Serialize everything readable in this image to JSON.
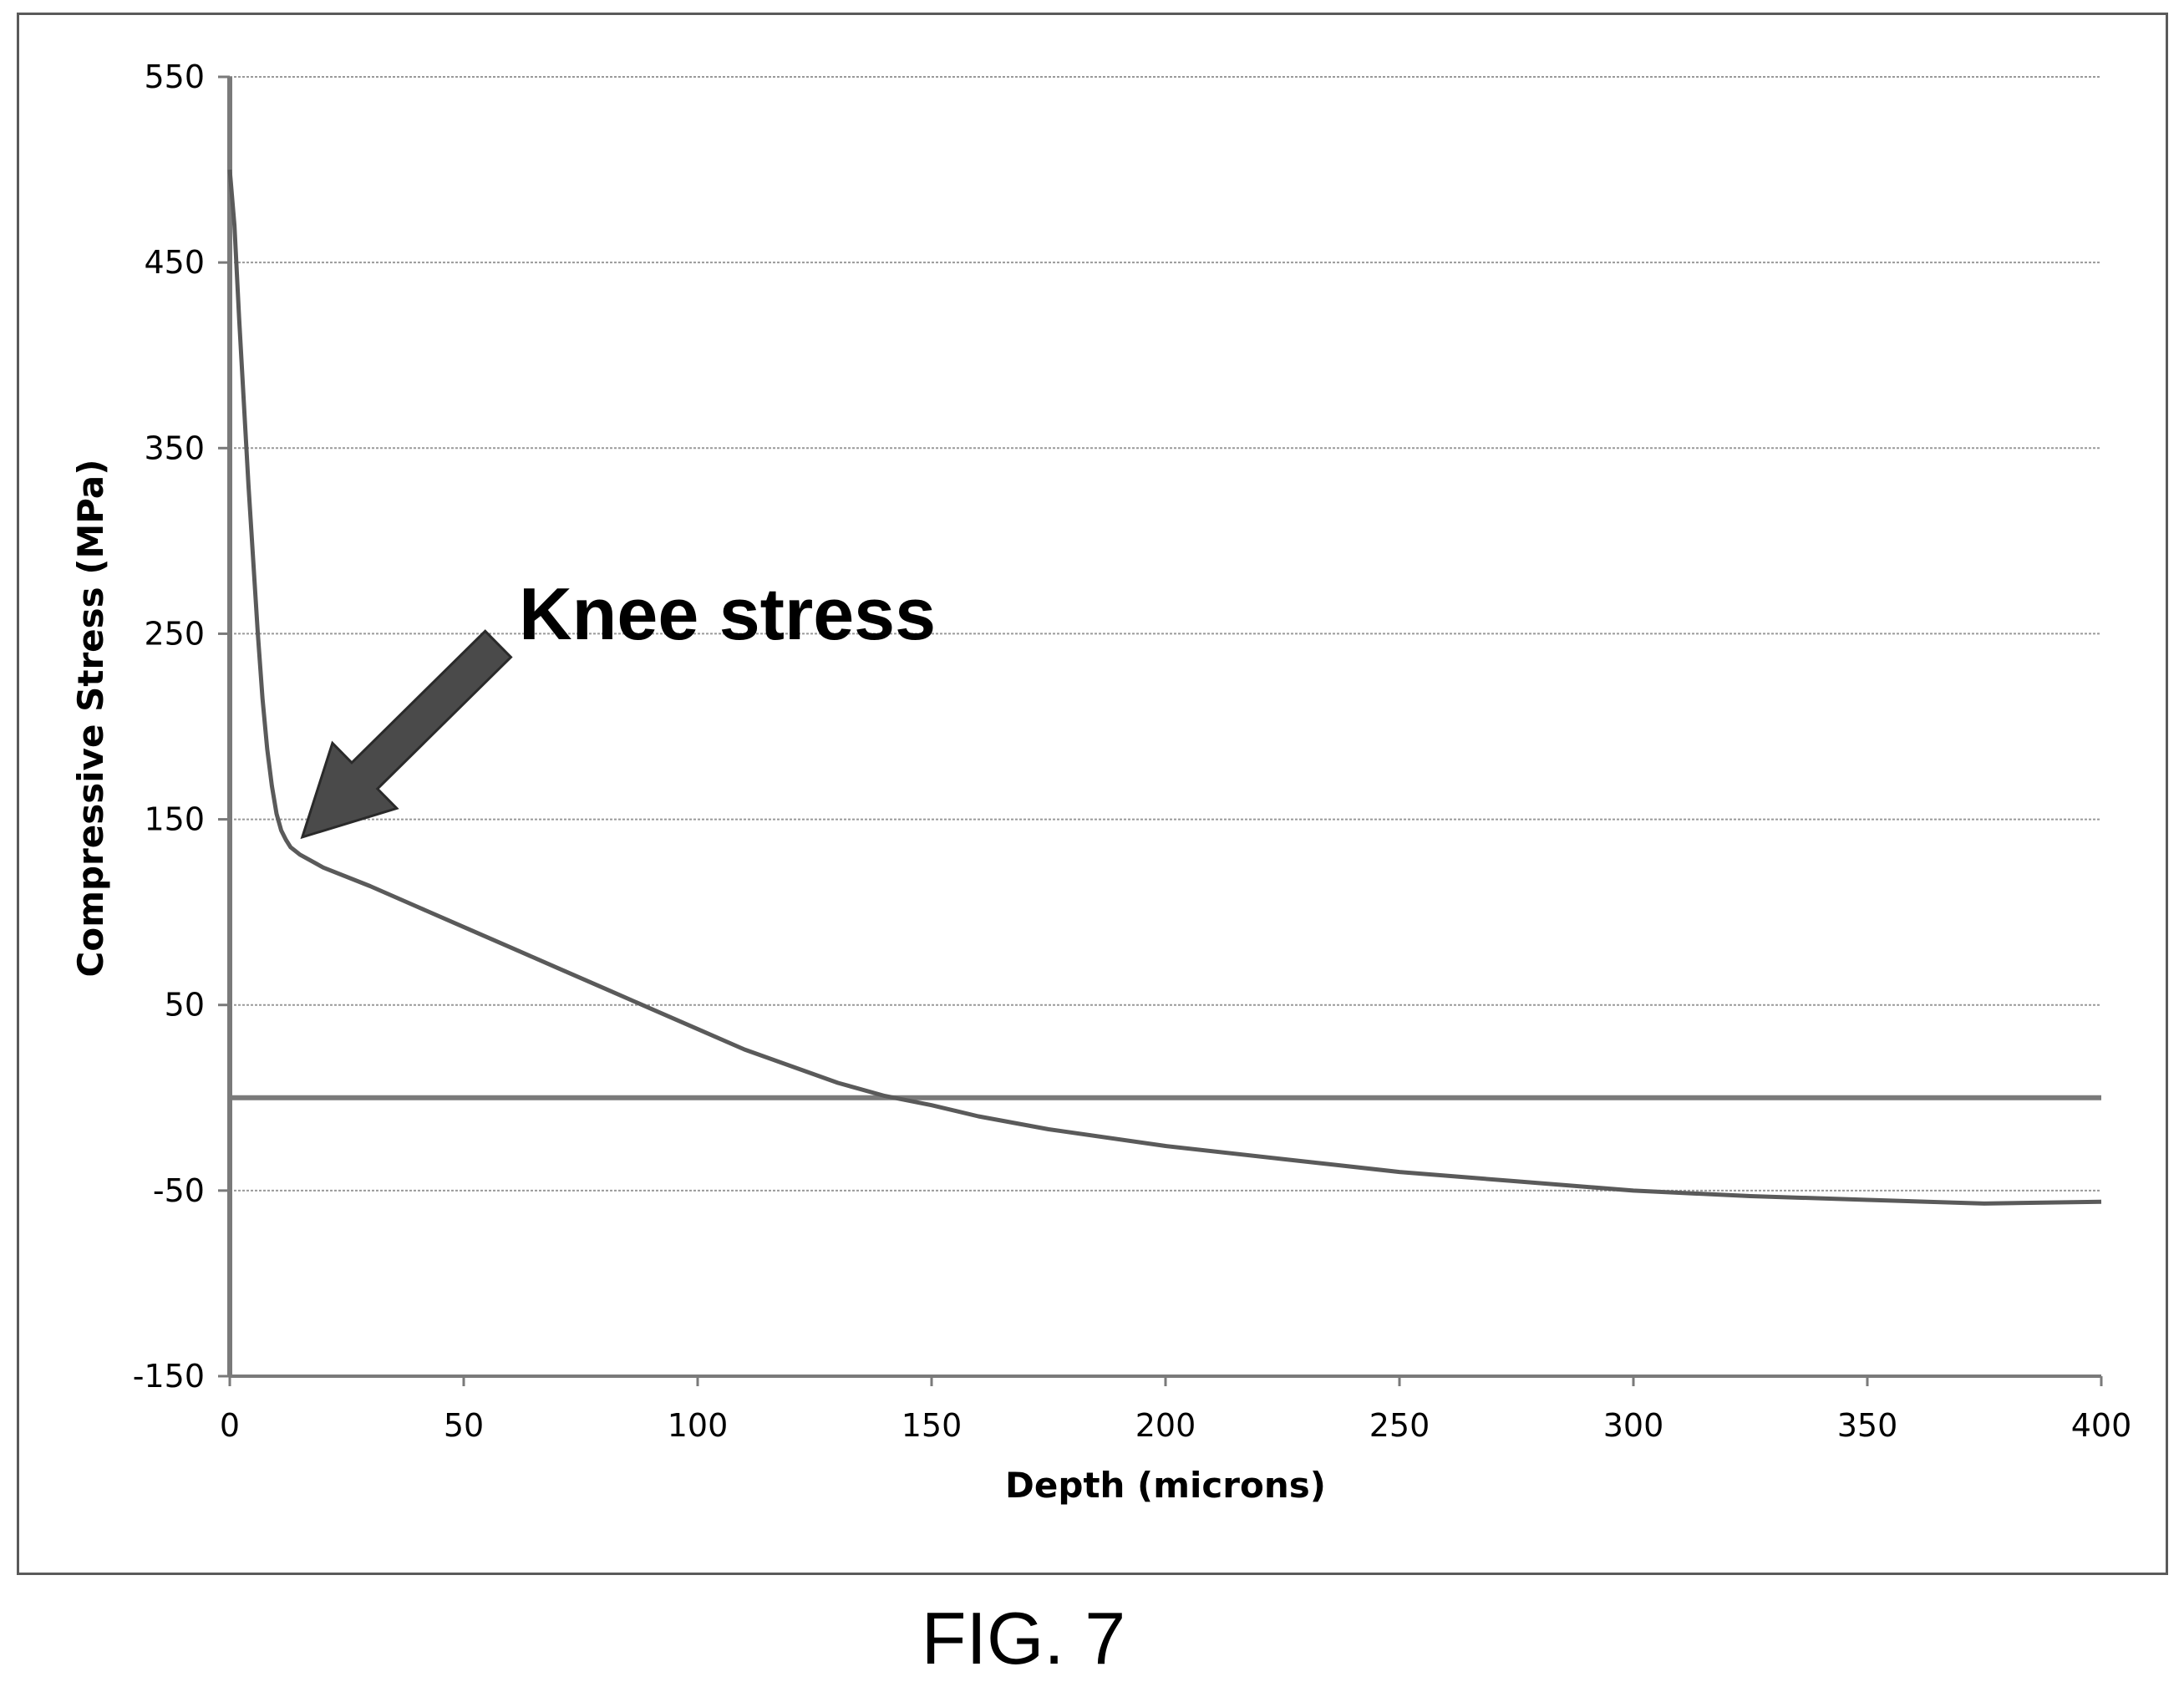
{
  "figure_caption": "FIG. 7",
  "chart_data": {
    "type": "line",
    "title": "",
    "xlabel": "Depth (microns)",
    "ylabel": "Compressive Stress (MPa)",
    "xlim": [
      0,
      400
    ],
    "ylim": [
      -150,
      550
    ],
    "x_ticks": [
      0,
      50,
      100,
      150,
      200,
      250,
      300,
      350,
      400
    ],
    "y_ticks": [
      550,
      450,
      350,
      250,
      150,
      50,
      -50,
      -150
    ],
    "grid": "horizontal",
    "zero_line": 0,
    "series": [
      {
        "color": "#5a5a5a",
        "points": [
          [
            0,
            500
          ],
          [
            1,
            470
          ],
          [
            2,
            420
          ],
          [
            3,
            375
          ],
          [
            4,
            330
          ],
          [
            5,
            290
          ],
          [
            6,
            250
          ],
          [
            7,
            215
          ],
          [
            8,
            188
          ],
          [
            9,
            168
          ],
          [
            10,
            153
          ],
          [
            11,
            144
          ],
          [
            12,
            139
          ],
          [
            13,
            135
          ],
          [
            15,
            131
          ],
          [
            20,
            124
          ],
          [
            30,
            114
          ],
          [
            40,
            103
          ],
          [
            50,
            92
          ],
          [
            60,
            81
          ],
          [
            70,
            70
          ],
          [
            80,
            59
          ],
          [
            90,
            48
          ],
          [
            100,
            37
          ],
          [
            110,
            26
          ],
          [
            120,
            17
          ],
          [
            130,
            8
          ],
          [
            140,
            1
          ],
          [
            150,
            -4
          ],
          [
            160,
            -10
          ],
          [
            175,
            -17
          ],
          [
            200,
            -26
          ],
          [
            225,
            -33
          ],
          [
            250,
            -40
          ],
          [
            275,
            -45
          ],
          [
            300,
            -50
          ],
          [
            325,
            -53
          ],
          [
            350,
            -55
          ],
          [
            375,
            -57
          ],
          [
            400,
            -56
          ]
        ]
      }
    ],
    "annotations": [
      {
        "text": "Knee stress",
        "target": [
          13,
          135
        ]
      }
    ]
  }
}
